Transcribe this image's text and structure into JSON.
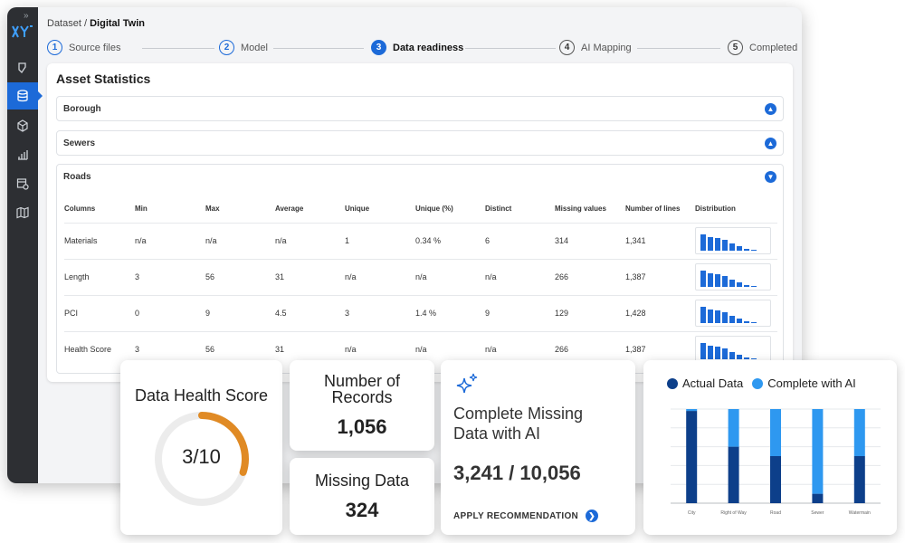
{
  "breadcrumb": {
    "parent": "Dataset",
    "separator": "/",
    "current": "Digital Twin"
  },
  "steps": [
    {
      "num": "1",
      "label": "Source files"
    },
    {
      "num": "2",
      "label": "Model"
    },
    {
      "num": "3",
      "label": "Data readiness"
    },
    {
      "num": "4",
      "label": "AI Mapping"
    },
    {
      "num": "5",
      "label": "Completed"
    }
  ],
  "panel": {
    "title": "Asset Statistics",
    "sections": [
      "Borough",
      "Sewers",
      "Roads"
    ]
  },
  "table": {
    "headers": [
      "Columns",
      "Min",
      "Max",
      "Average",
      "Unique",
      "Unique (%)",
      "Distinct",
      "Missing values",
      "Number of lines",
      "Distribution"
    ],
    "rows": [
      [
        "Materials",
        "n/a",
        "n/a",
        "n/a",
        "1",
        "0.34 %",
        "6",
        "314",
        "1,341"
      ],
      [
        "Length",
        "3",
        "56",
        "31",
        "n/a",
        "n/a",
        "n/a",
        "266",
        "1,387"
      ],
      [
        "PCI",
        "0",
        "9",
        "4.5",
        "3",
        "1.4 %",
        "9",
        "129",
        "1,428"
      ],
      [
        "Health Score",
        "3",
        "56",
        "31",
        "n/a",
        "n/a",
        "n/a",
        "266",
        "1,387"
      ]
    ],
    "distribution": [
      [
        1.0,
        0.85,
        0.75,
        0.65,
        0.45,
        0.25,
        0.1,
        0.05
      ],
      [
        1.0,
        0.85,
        0.75,
        0.65,
        0.45,
        0.25,
        0.1,
        0.05
      ],
      [
        1.0,
        0.85,
        0.75,
        0.65,
        0.45,
        0.25,
        0.1,
        0.05
      ],
      [
        1.0,
        0.85,
        0.75,
        0.65,
        0.45,
        0.25,
        0.1,
        0.05
      ]
    ]
  },
  "health": {
    "title": "Data Health Score",
    "score": "3/10",
    "fraction": 0.3,
    "color": "#e08a24"
  },
  "records": {
    "title_line1": "Number of",
    "title_line2": "Records",
    "value": "1,056"
  },
  "missing": {
    "title": "Missing Data",
    "value": "324"
  },
  "ai": {
    "title_line1": "Complete Missing",
    "title_line2": "Data with AI",
    "value": "3,241 / 10,056",
    "apply_label": "APPLY RECOMMENDATION"
  },
  "colors": {
    "accent": "#1c6ad8",
    "actual": "#0d3f8a",
    "ai": "#2e98f0"
  },
  "chart_data": {
    "type": "bar",
    "stacked": true,
    "categories": [
      "City",
      "Right of Way",
      "Road",
      "Sewer",
      "Watermain"
    ],
    "series": [
      {
        "name": "Actual Data",
        "values": [
          98,
          60,
          50,
          10,
          50
        ]
      },
      {
        "name": "Complete with AI",
        "values": [
          2,
          40,
          50,
          90,
          50
        ]
      }
    ],
    "ylim": [
      0,
      100
    ],
    "grid": true,
    "legend": "top"
  }
}
